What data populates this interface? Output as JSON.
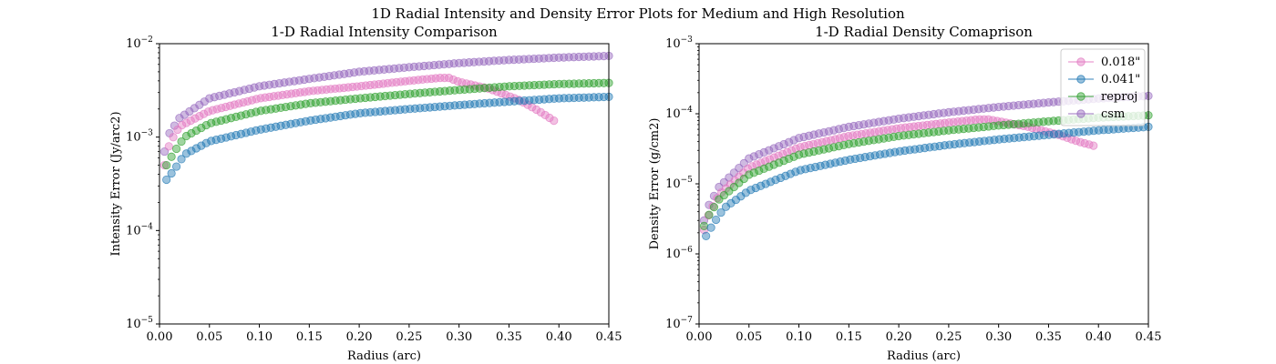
{
  "suptitle": "1D Radial Intensity and Density Error Plots for Medium and High Resolution",
  "chart_data": [
    {
      "type": "scatter",
      "title": "1-D Radial Intensity Comparison",
      "xlabel": "Radius (arc)",
      "ylabel": "Intensity Error (Jy/arc2)",
      "xlim": [
        0,
        0.45
      ],
      "ylim": [
        1e-05,
        0.01
      ],
      "yscale": "log",
      "xticks": [
        "0.00",
        "0.05",
        "0.10",
        "0.15",
        "0.20",
        "0.25",
        "0.30",
        "0.35",
        "0.40",
        "0.45"
      ],
      "yticks": [
        "10^-5",
        "10^-4",
        "10^-3",
        "10^-2"
      ],
      "grid": false,
      "legend": null,
      "series": [
        {
          "key": "csm",
          "color": "#9467bd",
          "x_start": 0.005,
          "x_end": 0.45,
          "points": [
            [
              0.005,
              0.0007
            ],
            [
              0.01,
              0.0011
            ],
            [
              0.02,
              0.0016
            ],
            [
              0.05,
              0.0026
            ],
            [
              0.1,
              0.0035
            ],
            [
              0.15,
              0.0042
            ],
            [
              0.2,
              0.005
            ],
            [
              0.25,
              0.0056
            ],
            [
              0.3,
              0.0062
            ],
            [
              0.35,
              0.0067
            ],
            [
              0.4,
              0.0071
            ],
            [
              0.45,
              0.0074
            ]
          ]
        },
        {
          "key": "0.018",
          "color": "#e377c2",
          "x_start": 0.005,
          "x_end": 0.395,
          "points": [
            [
              0.005,
              0.0005
            ],
            [
              0.01,
              0.00085
            ],
            [
              0.02,
              0.0013
            ],
            [
              0.05,
              0.0019
            ],
            [
              0.1,
              0.0026
            ],
            [
              0.15,
              0.0031
            ],
            [
              0.2,
              0.0035
            ],
            [
              0.25,
              0.004
            ],
            [
              0.28,
              0.0043
            ],
            [
              0.29,
              0.0043
            ],
            [
              0.3,
              0.0039
            ],
            [
              0.33,
              0.0033
            ],
            [
              0.36,
              0.0025
            ],
            [
              0.38,
              0.0019
            ],
            [
              0.395,
              0.0015
            ]
          ]
        },
        {
          "key": "reproj",
          "color": "#2ca02c",
          "x_start": 0.007,
          "x_end": 0.45,
          "points": [
            [
              0.007,
              0.0005
            ],
            [
              0.015,
              0.0007
            ],
            [
              0.025,
              0.001
            ],
            [
              0.05,
              0.0014
            ],
            [
              0.1,
              0.0019
            ],
            [
              0.15,
              0.0023
            ],
            [
              0.2,
              0.0026
            ],
            [
              0.25,
              0.0029
            ],
            [
              0.3,
              0.0032
            ],
            [
              0.35,
              0.0035
            ],
            [
              0.4,
              0.0037
            ],
            [
              0.45,
              0.0038
            ]
          ]
        },
        {
          "key": "0.041",
          "color": "#1f77b4",
          "x_start": 0.007,
          "x_end": 0.45,
          "points": [
            [
              0.007,
              0.00035
            ],
            [
              0.015,
              0.00045
            ],
            [
              0.025,
              0.00065
            ],
            [
              0.05,
              0.0009
            ],
            [
              0.1,
              0.0012
            ],
            [
              0.15,
              0.0015
            ],
            [
              0.2,
              0.0018
            ],
            [
              0.25,
              0.002
            ],
            [
              0.3,
              0.0022
            ],
            [
              0.35,
              0.0024
            ],
            [
              0.4,
              0.0026
            ],
            [
              0.45,
              0.0027
            ]
          ]
        }
      ]
    },
    {
      "type": "scatter",
      "title": "1-D Radial Density Comaprison",
      "xlabel": "Radius (arc)",
      "ylabel": "Density Error (g/cm2)",
      "xlim": [
        0,
        0.45
      ],
      "ylim": [
        1e-07,
        0.001
      ],
      "yscale": "log",
      "xticks": [
        "0.00",
        "0.05",
        "0.10",
        "0.15",
        "0.20",
        "0.25",
        "0.30",
        "0.35",
        "0.40",
        "0.45"
      ],
      "yticks": [
        "10^-7",
        "10^-6",
        "10^-5",
        "10^-4",
        "10^-3"
      ],
      "grid": false,
      "legend": {
        "placement": "top-right",
        "entries": [
          "0.018\"",
          "0.041\"",
          "reproj",
          "csm"
        ]
      },
      "series": [
        {
          "key": "csm",
          "color": "#9467bd",
          "x_start": 0.005,
          "x_end": 0.45,
          "points": [
            [
              0.005,
              3e-06
            ],
            [
              0.01,
              5e-06
            ],
            [
              0.02,
              9e-06
            ],
            [
              0.05,
              2.3e-05
            ],
            [
              0.1,
              4.5e-05
            ],
            [
              0.15,
              6.5e-05
            ],
            [
              0.2,
              8.5e-05
            ],
            [
              0.25,
              0.000105
            ],
            [
              0.3,
              0.000125
            ],
            [
              0.35,
              0.000145
            ],
            [
              0.4,
              0.000165
            ],
            [
              0.45,
              0.00018
            ]
          ]
        },
        {
          "key": "0.018",
          "color": "#e377c2",
          "x_start": 0.005,
          "x_end": 0.395,
          "points": [
            [
              0.005,
              2.2e-06
            ],
            [
              0.01,
              3.8e-06
            ],
            [
              0.02,
              7e-06
            ],
            [
              0.05,
              1.7e-05
            ],
            [
              0.1,
              3.3e-05
            ],
            [
              0.15,
              4.8e-05
            ],
            [
              0.2,
              6.2e-05
            ],
            [
              0.25,
              7.5e-05
            ],
            [
              0.28,
              8.3e-05
            ],
            [
              0.29,
              8.3e-05
            ],
            [
              0.3,
              7.8e-05
            ],
            [
              0.33,
              6.5e-05
            ],
            [
              0.36,
              5e-05
            ],
            [
              0.38,
              4e-05
            ],
            [
              0.395,
              3.5e-05
            ]
          ]
        },
        {
          "key": "reproj",
          "color": "#2ca02c",
          "x_start": 0.005,
          "x_end": 0.45,
          "points": [
            [
              0.005,
              2.5e-06
            ],
            [
              0.01,
              3.6e-06
            ],
            [
              0.02,
              6e-06
            ],
            [
              0.05,
              1.35e-05
            ],
            [
              0.1,
              2.6e-05
            ],
            [
              0.15,
              3.7e-05
            ],
            [
              0.2,
              4.8e-05
            ],
            [
              0.25,
              5.8e-05
            ],
            [
              0.3,
              6.8e-05
            ],
            [
              0.35,
              7.8e-05
            ],
            [
              0.4,
              8.8e-05
            ],
            [
              0.45,
              9.5e-05
            ]
          ]
        },
        {
          "key": "0.041",
          "color": "#1f77b4",
          "x_start": 0.007,
          "x_end": 0.45,
          "points": [
            [
              0.007,
              1.8e-06
            ],
            [
              0.015,
              2.8e-06
            ],
            [
              0.025,
              4.5e-06
            ],
            [
              0.05,
              8e-06
            ],
            [
              0.1,
              1.55e-05
            ],
            [
              0.15,
              2.2e-05
            ],
            [
              0.2,
              2.9e-05
            ],
            [
              0.25,
              3.6e-05
            ],
            [
              0.3,
              4.3e-05
            ],
            [
              0.35,
              5e-05
            ],
            [
              0.4,
              5.8e-05
            ],
            [
              0.45,
              6.5e-05
            ]
          ]
        }
      ]
    }
  ]
}
